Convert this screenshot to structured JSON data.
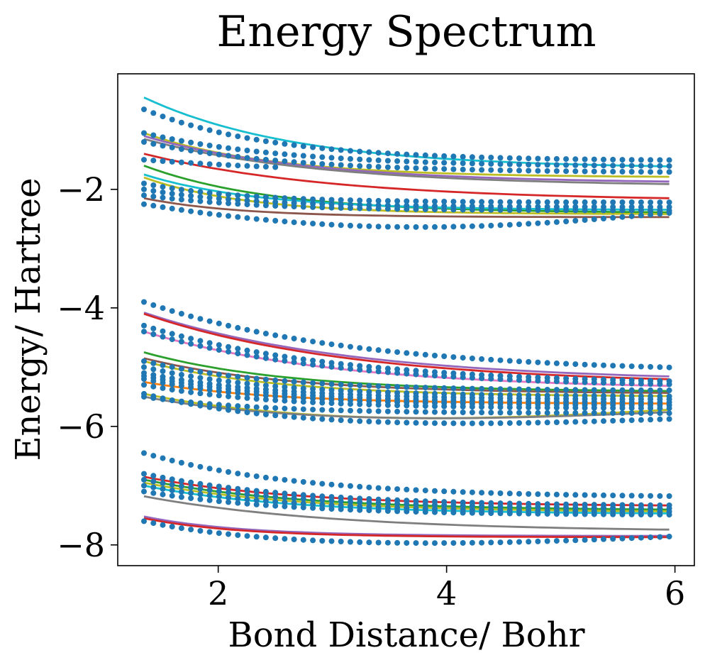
{
  "chart_data": {
    "type": "scatter",
    "title": "Energy Spectrum",
    "xlabel": "Bond Distance/ Bohr",
    "ylabel": "Energy/ Hartree",
    "xlim": [
      1.12,
      6.17
    ],
    "ylim": [
      -8.35,
      -0.05
    ],
    "xticks": [
      {
        "value": 2,
        "label": "2"
      },
      {
        "value": 4,
        "label": "4"
      },
      {
        "value": 6,
        "label": "6"
      }
    ],
    "yticks": [
      {
        "value": -2,
        "label": "−2"
      },
      {
        "value": -4,
        "label": "−4"
      },
      {
        "value": -6,
        "label": "−6"
      },
      {
        "value": -8,
        "label": "−8"
      }
    ],
    "x_range": [
      1.35,
      5.95
    ],
    "line_samples": 48,
    "point_samples": 56,
    "point_color": "#1f77b4",
    "line_series": [
      {
        "name": "line-1",
        "color": "#17becf",
        "start": -0.45,
        "end": -1.65,
        "k": 0.75
      },
      {
        "name": "line-2",
        "color": "#bcbd22",
        "start": -1.05,
        "end": -1.8,
        "k": 0.9
      },
      {
        "name": "line-3",
        "color": "#9467bd",
        "start": -1.1,
        "end": -1.9,
        "k": 0.7
      },
      {
        "name": "line-4",
        "color": "#7f7f7f",
        "start": -1.15,
        "end": -1.95,
        "k": 0.65
      },
      {
        "name": "line-5",
        "color": "#d62728",
        "start": -1.4,
        "end": -2.2,
        "k": 0.6
      },
      {
        "name": "line-6",
        "color": "#2ca02c",
        "start": -1.6,
        "end": -2.4,
        "k": 0.9
      },
      {
        "name": "line-7",
        "color": "#17becf",
        "start": -1.75,
        "end": -2.35,
        "k": 1.0
      },
      {
        "name": "line-8",
        "color": "#bcbd22",
        "start": -1.8,
        "end": -2.42,
        "k": 1.1
      },
      {
        "name": "line-9",
        "color": "#8c564b",
        "start": -2.15,
        "end": -2.47,
        "k": 1.2
      },
      {
        "name": "line-10",
        "color": "#9467bd",
        "start": -4.08,
        "end": -5.25,
        "k": 0.55
      },
      {
        "name": "line-11",
        "color": "#d62728",
        "start": -4.1,
        "end": -5.3,
        "k": 0.55
      },
      {
        "name": "line-12",
        "color": "#e377c2",
        "start": -4.4,
        "end": -5.38,
        "k": 0.6
      },
      {
        "name": "line-13",
        "color": "#2ca02c",
        "start": -4.75,
        "end": -5.42,
        "k": 0.8
      },
      {
        "name": "line-14",
        "color": "#8c564b",
        "start": -4.85,
        "end": -5.45,
        "k": 0.8
      },
      {
        "name": "line-15",
        "color": "#bcbd22",
        "start": -4.9,
        "end": -5.5,
        "k": 0.85
      },
      {
        "name": "line-16",
        "color": "#ff7f0e",
        "start": -5.25,
        "end": -5.62,
        "k": 0.9
      },
      {
        "name": "line-17",
        "color": "#bcbd22",
        "start": -5.45,
        "end": -5.72,
        "k": 1.1,
        "dip": 0.16
      },
      {
        "name": "line-18",
        "color": "#7f7f7f",
        "start": -5.5,
        "end": -5.76,
        "k": 1.1,
        "dip": 0.12
      },
      {
        "name": "line-19",
        "color": "#d62728",
        "start": -6.85,
        "end": -7.35,
        "k": 0.75
      },
      {
        "name": "line-20",
        "color": "#2ca02c",
        "start": -6.9,
        "end": -7.42,
        "k": 0.75
      },
      {
        "name": "line-21",
        "color": "#bcbd22",
        "start": -6.95,
        "end": -7.45,
        "k": 0.75
      },
      {
        "name": "line-22",
        "color": "#17becf",
        "start": -7.0,
        "end": -7.48,
        "k": 0.8
      },
      {
        "name": "line-23",
        "color": "#7f7f7f",
        "start": -7.18,
        "end": -7.78,
        "k": 0.6
      },
      {
        "name": "line-24",
        "color": "#9467bd",
        "start": -7.52,
        "end": -7.85,
        "k": 1.2
      },
      {
        "name": "line-25",
        "color": "#d62728",
        "start": -7.55,
        "end": -7.87,
        "k": 1.2
      }
    ],
    "point_series": [
      {
        "name": "points-1",
        "start": -0.65,
        "end": -1.52,
        "k": 0.9
      },
      {
        "name": "points-2",
        "start": -1.05,
        "end": -1.62,
        "k": 0.8
      },
      {
        "name": "points-3",
        "start": -1.2,
        "end": -1.72,
        "k": 0.8
      },
      {
        "name": "points-4",
        "start": -1.5,
        "end": -1.75,
        "k": 0.6,
        "x_max": 2.55
      },
      {
        "name": "points-5",
        "start": -1.9,
        "end": -2.22,
        "k": 1.2
      },
      {
        "name": "points-6",
        "start": -2.0,
        "end": -2.3,
        "k": 1.1
      },
      {
        "name": "points-7",
        "start": -2.1,
        "end": -2.36,
        "k": 1.0
      },
      {
        "name": "points-8",
        "start": -2.25,
        "end": -2.4,
        "k": 1.0,
        "dip": 0.25
      },
      {
        "name": "points-9",
        "start": -3.9,
        "end": -5.1,
        "k": 0.55
      },
      {
        "name": "points-10",
        "start": -4.3,
        "end": -5.3,
        "k": 0.6
      },
      {
        "name": "points-11",
        "start": -4.4,
        "end": -5.35,
        "k": 0.6
      },
      {
        "name": "points-12",
        "start": -4.9,
        "end": -5.4,
        "k": 0.9
      },
      {
        "name": "points-13",
        "start": -5.0,
        "end": -5.5,
        "k": 0.9
      },
      {
        "name": "points-14",
        "start": -5.1,
        "end": -5.55,
        "k": 0.9
      },
      {
        "name": "points-15",
        "start": -5.15,
        "end": -5.6,
        "k": 0.9
      },
      {
        "name": "points-16",
        "start": -5.2,
        "end": -5.65,
        "k": 0.9
      },
      {
        "name": "points-17",
        "start": -5.3,
        "end": -5.7,
        "k": 0.9
      },
      {
        "name": "points-18",
        "start": -5.5,
        "end": -5.78,
        "k": 1.0
      },
      {
        "name": "points-19",
        "start": -5.45,
        "end": -5.88,
        "k": 1.0,
        "dip": 0.1
      },
      {
        "name": "points-20",
        "start": -6.45,
        "end": -7.2,
        "k": 0.75
      },
      {
        "name": "points-21",
        "start": -6.8,
        "end": -7.35,
        "k": 0.75
      },
      {
        "name": "points-22",
        "start": -6.9,
        "end": -7.4,
        "k": 0.75
      },
      {
        "name": "points-23",
        "start": -7.0,
        "end": -7.45,
        "k": 0.8
      },
      {
        "name": "points-24",
        "start": -7.1,
        "end": -7.5,
        "k": 0.8
      },
      {
        "name": "points-25",
        "start": -7.6,
        "end": -7.86,
        "k": 1.3,
        "dip": 0.12
      }
    ]
  }
}
